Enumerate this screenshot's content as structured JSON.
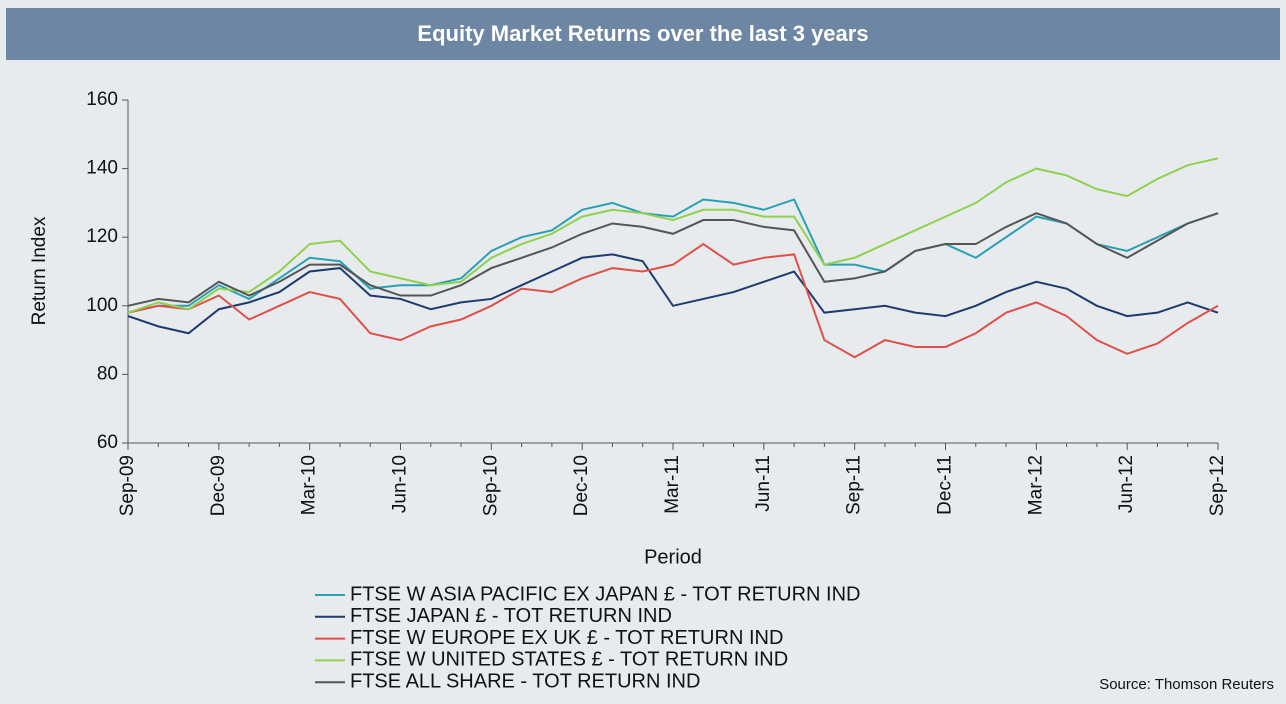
{
  "chart_data": {
    "type": "line",
    "title": "Equity Market Returns over the last 3 years",
    "xlabel": "Period",
    "ylabel": "Return Index",
    "source": "Source: Thomson Reuters",
    "categories": [
      "Sep-09",
      null,
      null,
      "Dec-09",
      null,
      null,
      "Mar-10",
      null,
      null,
      "Jun-10",
      null,
      null,
      "Sep-10",
      null,
      null,
      "Dec-10",
      null,
      null,
      "Mar-11",
      null,
      null,
      "Jun-11",
      null,
      null,
      "Sep-11",
      null,
      null,
      "Dec-11",
      null,
      null,
      "Mar-12",
      null,
      null,
      "Jun-12",
      null,
      null,
      "Sep-12"
    ],
    "ylim": [
      60,
      160
    ],
    "yticks": [
      60,
      80,
      100,
      120,
      140,
      160
    ],
    "series": [
      {
        "name": "FTSE W ASIA PACIFIC EX JAPAN £ - TOT RETURN IND",
        "color": "#2aa0b4",
        "values": [
          98,
          100,
          100,
          106,
          102,
          108,
          114,
          113,
          105,
          106,
          106,
          108,
          116,
          120,
          122,
          128,
          130,
          127,
          126,
          131,
          130,
          128,
          131,
          112,
          112,
          110,
          116,
          118,
          114,
          120,
          126,
          124,
          118,
          116,
          120,
          124,
          127
        ]
      },
      {
        "name": "FTSE JAPAN £ - TOT RETURN IND",
        "color": "#1f3b6e",
        "values": [
          97,
          94,
          92,
          99,
          101,
          104,
          110,
          111,
          103,
          102,
          99,
          101,
          102,
          106,
          110,
          114,
          115,
          113,
          100,
          102,
          104,
          107,
          110,
          98,
          99,
          100,
          98,
          97,
          100,
          104,
          107,
          105,
          100,
          97,
          98,
          101,
          98
        ]
      },
      {
        "name": "FTSE W EUROPE EX UK £ - TOT RETURN IND",
        "color": "#e0504a",
        "values": [
          98,
          100,
          99,
          103,
          96,
          100,
          104,
          102,
          92,
          90,
          94,
          96,
          100,
          105,
          104,
          108,
          111,
          110,
          112,
          118,
          112,
          114,
          115,
          90,
          85,
          90,
          88,
          88,
          92,
          98,
          101,
          97,
          90,
          86,
          89,
          95,
          100
        ]
      },
      {
        "name": "FTSE W UNITED STATES £ - TOT RETURN IND",
        "color": "#8fd14f",
        "values": [
          98,
          101,
          99,
          105,
          104,
          110,
          118,
          119,
          110,
          108,
          106,
          107,
          114,
          118,
          121,
          126,
          128,
          127,
          125,
          128,
          128,
          126,
          126,
          112,
          114,
          118,
          122,
          126,
          130,
          136,
          140,
          138,
          134,
          132,
          137,
          141,
          143
        ]
      },
      {
        "name": "FTSE ALL SHARE - TOT RETURN IND",
        "color": "#555555",
        "values": [
          100,
          102,
          101,
          107,
          103,
          107,
          112,
          112,
          106,
          103,
          103,
          106,
          111,
          114,
          117,
          121,
          124,
          123,
          121,
          125,
          125,
          123,
          122,
          107,
          108,
          110,
          116,
          118,
          118,
          123,
          127,
          124,
          118,
          114,
          119,
          124,
          127
        ]
      }
    ]
  }
}
